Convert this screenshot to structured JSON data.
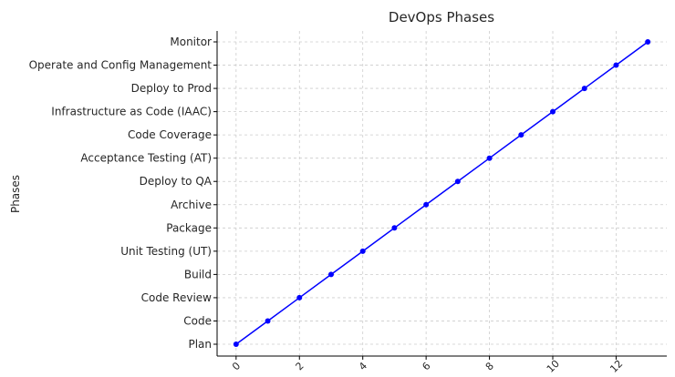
{
  "chart_data": {
    "type": "line",
    "title": "DevOps Phases",
    "xlabel": "",
    "ylabel": "Phases",
    "categories": [
      "Plan",
      "Code",
      "Code Review",
      "Build",
      "Unit Testing (UT)",
      "Package",
      "Archive",
      "Deploy to QA",
      "Acceptance Testing (AT)",
      "Code Coverage",
      "Infrastructure as Code (IAAC)",
      "Deploy to Prod",
      "Operate and Config Management",
      "Monitor"
    ],
    "x": [
      0,
      1,
      2,
      3,
      4,
      5,
      6,
      7,
      8,
      9,
      10,
      11,
      12,
      13
    ],
    "xticks": [
      0,
      2,
      4,
      6,
      8,
      10,
      12
    ],
    "xlim": [
      -0.6,
      13.6
    ],
    "grid": true,
    "line_color": "#0000ff",
    "marker_color": "#0000ff"
  }
}
